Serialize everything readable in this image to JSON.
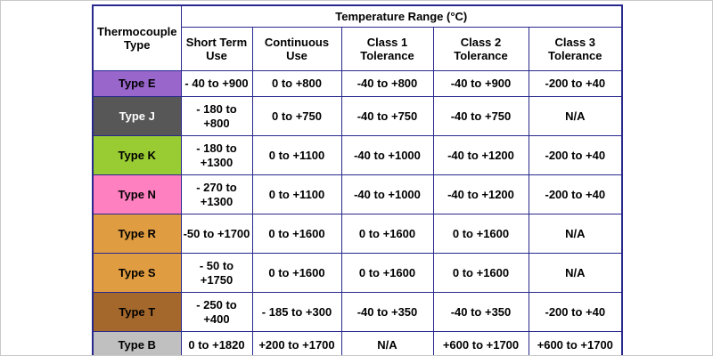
{
  "chart_data": {
    "type": "table",
    "title": "Temperature Range (°C)",
    "corner_header": "Thermocouple Type",
    "columns": [
      "Short Term Use",
      "Continuous Use",
      "Class 1 Tolerance",
      "Class 2 Tolerance",
      "Class 3 Tolerance"
    ],
    "rows": [
      {
        "type": "Type E",
        "bg": "#9966CC",
        "fg": "#000000",
        "values": [
          "- 40 to +900",
          "0 to +800",
          "-40 to +800",
          "-40 to +900",
          "-200 to +40"
        ]
      },
      {
        "type": "Type J",
        "bg": "#575757",
        "fg": "#FFFFFF",
        "values": [
          "- 180 to +800",
          "0 to +750",
          "-40 to +750",
          "-40 to +750",
          "N/A"
        ]
      },
      {
        "type": "Type K",
        "bg": "#99CC33",
        "fg": "#000000",
        "values": [
          "- 180 to +1300",
          "0 to +1100",
          "-40 to +1000",
          "-40 to +1200",
          "-200 to +40"
        ]
      },
      {
        "type": "Type N",
        "bg": "#FF80C0",
        "fg": "#000000",
        "values": [
          "- 270 to +1300",
          "0 to +1100",
          "-40 to +1000",
          "-40 to +1200",
          "-200 to +40"
        ]
      },
      {
        "type": "Type R",
        "bg": "#E09C40",
        "fg": "#000000",
        "values": [
          "-50 to +1700",
          "0 to +1600",
          "0 to +1600",
          "0 to +1600",
          "N/A"
        ]
      },
      {
        "type": "Type S",
        "bg": "#E09C40",
        "fg": "#000000",
        "values": [
          "- 50 to +1750",
          "0 to +1600",
          "0 to +1600",
          "0 to +1600",
          "N/A"
        ]
      },
      {
        "type": "Type T",
        "bg": "#A5682C",
        "fg": "#000000",
        "values": [
          "- 250 to +400",
          "- 185 to +300",
          "-40 to +350",
          "-40 to +350",
          "-200 to +40"
        ]
      },
      {
        "type": "Type B",
        "bg": "#C0C0C0",
        "fg": "#000000",
        "values": [
          "0 to +1820",
          "+200 to +1700",
          "N/A",
          "+600 to +1700",
          "+600 to +1700"
        ]
      }
    ],
    "colors": {
      "border": "#28288d",
      "header_text": "#000000",
      "cell_background": "#FFFFFF"
    },
    "layout": {
      "legend_position": "none",
      "grid": "full-borders"
    }
  }
}
